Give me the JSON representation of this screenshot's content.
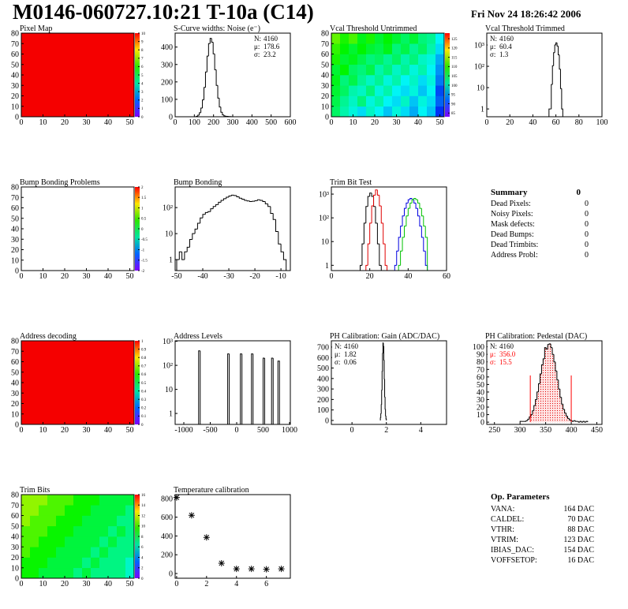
{
  "header": {
    "title": "M0146-060727.10:21 T-10a (C14)",
    "date": "Fri Nov 24 18:26:42 2006"
  },
  "chart_data": [
    {
      "type": "heatmap",
      "title": "Pixel Map",
      "xlim": [
        0,
        52
      ],
      "ylim": [
        0,
        80
      ],
      "xticks": [
        0,
        10,
        20,
        30,
        40,
        50
      ],
      "yticks": [
        0,
        10,
        20,
        30,
        40,
        50,
        60,
        70,
        80
      ],
      "zlim": [
        0,
        10
      ],
      "zticks": [
        0,
        1,
        2,
        3,
        4,
        5,
        6,
        7,
        8,
        9,
        10
      ],
      "values": [
        [
          10
        ]
      ]
    },
    {
      "type": "histogram",
      "title": "S-Curve widths: Noise (e⁻)",
      "xlim": [
        0,
        600
      ],
      "ylim": [
        0,
        480
      ],
      "xticks": [
        0,
        100,
        200,
        300,
        400,
        500,
        600
      ],
      "yticks": [
        0,
        100,
        200,
        300,
        400
      ],
      "color": "#000000",
      "bins": [
        110,
        118,
        126,
        134,
        142,
        150,
        158,
        166,
        174,
        182,
        190,
        198,
        206,
        214,
        222,
        230,
        238,
        246,
        254,
        262,
        270,
        278,
        286,
        294,
        302
      ],
      "values": [
        3,
        9,
        23,
        50,
        97,
        168,
        257,
        348,
        420,
        450,
        428,
        361,
        270,
        180,
        107,
        56,
        26,
        11,
        5,
        3,
        2,
        1,
        1,
        0
      ],
      "stats_corner": "top-right",
      "stats": [
        {
          "label": "N:",
          "value": 4160
        },
        {
          "label": "μ:",
          "value": 178.6
        },
        {
          "label": "σ:",
          "value": 23.2
        }
      ]
    },
    {
      "type": "heatmap",
      "title": "Vcal Threshold Untrimmed",
      "xlim": [
        0,
        52
      ],
      "ylim": [
        0,
        80
      ],
      "xticks": [
        0,
        10,
        20,
        30,
        40,
        50
      ],
      "yticks": [
        0,
        10,
        20,
        30,
        40,
        50,
        60,
        70,
        80
      ],
      "zlim": [
        83,
        128
      ],
      "zticks": [
        85,
        90,
        95,
        100,
        105,
        110,
        115,
        120,
        125
      ],
      "values": [
        [
          104,
          101,
          99,
          97,
          100,
          98,
          96,
          99,
          97,
          95,
          98,
          96,
          90
        ],
        [
          105,
          102,
          100,
          103,
          99,
          101,
          98,
          97,
          100,
          96,
          99,
          97,
          92
        ],
        [
          106,
          104,
          101,
          100,
          103,
          99,
          101,
          98,
          97,
          99,
          96,
          98,
          91
        ],
        [
          107,
          103,
          105,
          102,
          100,
          102,
          99,
          101,
          98,
          100,
          97,
          99,
          93
        ],
        [
          106,
          108,
          104,
          103,
          105,
          101,
          103,
          100,
          102,
          99,
          101,
          98,
          94
        ],
        [
          109,
          106,
          107,
          105,
          103,
          104,
          102,
          104,
          101,
          103,
          100,
          99,
          95
        ],
        [
          110,
          108,
          106,
          108,
          106,
          105,
          107,
          103,
          105,
          102,
          104,
          101,
          97
        ],
        [
          112,
          109,
          111,
          107,
          109,
          106,
          108,
          106,
          104,
          106,
          103,
          102,
          98
        ]
      ]
    },
    {
      "type": "histogram",
      "title": "Vcal Threshold Trimmed",
      "log_y": true,
      "xlim": [
        0,
        100
      ],
      "ylim": [
        0.43,
        3600
      ],
      "xticks": [
        0,
        20,
        40,
        60,
        80,
        100
      ],
      "yticks": [
        1,
        10,
        {
          "value": 100,
          "label": "10²"
        },
        {
          "value": 1000,
          "label": "10³"
        }
      ],
      "color": "#000000",
      "bins": [
        54,
        55,
        56,
        57,
        58,
        59,
        60,
        61,
        62,
        63,
        64,
        65,
        66
      ],
      "values": [
        1,
        1,
        14,
        106,
        439,
        1004,
        1274,
        893,
        347,
        74,
        9,
        1
      ],
      "stats_corner": "top-left",
      "stats": [
        {
          "label": "N:",
          "value": 4160
        },
        {
          "label": "μ:",
          "value": 60.4
        },
        {
          "label": "σ:",
          "value": 1.3
        }
      ]
    },
    {
      "type": "heatmap",
      "title": "Bump Bonding Problems",
      "xlim": [
        0,
        52
      ],
      "ylim": [
        0,
        80
      ],
      "xticks": [
        0,
        10,
        20,
        30,
        40,
        50
      ],
      "yticks": [
        0,
        10,
        20,
        30,
        40,
        50,
        60,
        70,
        80
      ],
      "zlim": [
        -2,
        2
      ],
      "zticks": [
        -2,
        -1.5,
        -1,
        -0.5,
        0,
        0.5,
        1,
        1.5,
        2
      ]
    },
    {
      "type": "histogram",
      "title": "Bump Bonding",
      "log_y": true,
      "xlim": [
        -50.6,
        -6.4
      ],
      "ylim": [
        0.38,
        620
      ],
      "xticks": [
        -50,
        -40,
        -30,
        -20,
        -10
      ],
      "yticks": [
        1,
        10,
        {
          "value": 100,
          "label": "10²"
        }
      ],
      "color": "#000000",
      "bins": [
        -50,
        -49,
        -48,
        -47,
        -46,
        -45,
        -44,
        -43,
        -42,
        -41,
        -40,
        -39,
        -38,
        -37,
        -36,
        -35,
        -34,
        -33,
        -32,
        -31,
        -30,
        -29,
        -28,
        -27,
        -26,
        -25,
        -24,
        -23,
        -22,
        -21,
        -20,
        -19,
        -18,
        -17,
        -16,
        -15,
        -14,
        -13,
        -12,
        -11,
        -10,
        -9,
        -8
      ],
      "values": [
        1,
        2,
        1,
        2,
        3,
        6,
        10,
        15,
        25,
        40,
        55,
        65,
        70,
        90,
        110,
        130,
        160,
        190,
        220,
        250,
        280,
        300,
        290,
        260,
        230,
        210,
        190,
        180,
        170,
        175,
        185,
        200,
        190,
        170,
        140,
        110,
        60,
        35,
        12,
        4,
        2,
        1
      ]
    },
    {
      "type": "histogram",
      "title": "Trim Bit Test",
      "log_y": true,
      "xlim": [
        0,
        60
      ],
      "ylim": [
        0.6,
        2000
      ],
      "xticks": [
        0,
        20,
        40,
        60
      ],
      "yticks": [
        1,
        10,
        {
          "value": 100,
          "label": "10²"
        },
        {
          "value": 1000,
          "label": "10³"
        }
      ],
      "bins": [
        14,
        15,
        16,
        17,
        18,
        19,
        20,
        21,
        22,
        23,
        24,
        25,
        26,
        27,
        28,
        29,
        30,
        31,
        32,
        33,
        34,
        35,
        36,
        37,
        38,
        39,
        40,
        41,
        42,
        43,
        44,
        45,
        46,
        47,
        48,
        49,
        50
      ],
      "series": [
        {
          "color": "#000000",
          "values": [
            0,
            1,
            8,
            60,
            300,
            800,
            1100,
            800,
            300,
            60,
            8,
            1,
            0,
            0,
            0,
            0,
            0,
            0,
            0,
            0,
            0,
            0,
            0,
            0,
            0,
            0,
            0,
            0,
            0,
            0,
            0,
            0,
            0,
            0,
            0,
            0
          ]
        },
        {
          "color": "#e00000",
          "values": [
            0,
            0,
            0,
            0,
            1,
            8,
            60,
            320,
            900,
            1500,
            900,
            320,
            60,
            8,
            1,
            0,
            0,
            0,
            0,
            0,
            0,
            0,
            0,
            0,
            0,
            0,
            0,
            0,
            0,
            0,
            0,
            0,
            0,
            0,
            0,
            0
          ]
        },
        {
          "color": "#0000e0",
          "values": [
            0,
            0,
            0,
            0,
            0,
            0,
            0,
            0,
            0,
            0,
            0,
            0,
            0,
            0,
            0,
            0,
            0,
            0,
            0,
            1,
            4,
            15,
            45,
            120,
            250,
            420,
            580,
            660,
            580,
            420,
            250,
            120,
            45,
            15,
            4,
            1
          ]
        },
        {
          "color": "#00c000",
          "values": [
            0,
            0,
            0,
            0,
            0,
            0,
            0,
            0,
            0,
            0,
            0,
            0,
            0,
            0,
            0,
            0,
            0,
            0,
            0,
            0,
            0,
            1,
            4,
            15,
            45,
            120,
            250,
            420,
            580,
            660,
            580,
            420,
            250,
            120,
            45,
            15
          ]
        }
      ]
    },
    {
      "type": "heatmap",
      "title": "Address decoding",
      "xlim": [
        0,
        52
      ],
      "ylim": [
        0,
        80
      ],
      "xticks": [
        0,
        10,
        20,
        30,
        40,
        50
      ],
      "yticks": [
        0,
        10,
        20,
        30,
        40,
        50,
        60,
        70,
        80
      ],
      "zlim": [
        0,
        1
      ],
      "zticks": [
        0,
        0.1,
        0.2,
        0.3,
        0.4,
        0.5,
        0.6,
        0.7,
        0.8,
        0.9,
        1
      ],
      "values": [
        [
          1
        ]
      ]
    },
    {
      "type": "histogram",
      "title": "Address Levels",
      "log_y": true,
      "xlim": [
        -1164,
        1015
      ],
      "ylim": [
        0.35,
        1050
      ],
      "xticks": [
        -1000,
        -500,
        0,
        500,
        1000
      ],
      "yticks": [
        1,
        10,
        {
          "value": 100,
          "label": "10²"
        },
        {
          "value": 1000,
          "label": "10³"
        }
      ],
      "color": "#000000",
      "bins": [
        -720,
        -690,
        -170,
        -140,
        70,
        100,
        280,
        310,
        500,
        530,
        660,
        690,
        780,
        810
      ],
      "values": [
        400,
        0,
        300,
        0,
        300,
        0,
        300,
        0,
        200,
        0,
        200,
        0,
        150
      ]
    },
    {
      "type": "histogram",
      "title": "PH Calibration: Gain (ADC/DAC)",
      "xlim": [
        -1.2,
        5.5
      ],
      "ylim": [
        -38,
        760
      ],
      "xticks": [
        0,
        2,
        4
      ],
      "yticks": [
        0,
        100,
        200,
        300,
        400,
        500,
        600,
        700
      ],
      "color": "#000000",
      "bins": [
        1.65,
        1.675,
        1.7,
        1.725,
        1.75,
        1.775,
        1.8,
        1.825,
        1.85,
        1.875,
        1.9,
        1.925,
        1.95,
        1.975,
        2.0
      ],
      "values": [
        24,
        64,
        150,
        288,
        468,
        640,
        740,
        709,
        576,
        394,
        225,
        108,
        44,
        15
      ],
      "stats_corner": "top-left",
      "stats": [
        {
          "label": "N:",
          "value": 4160
        },
        {
          "label": "μ:",
          "value": 1.82
        },
        {
          "label": "σ:",
          "value": 0.06
        }
      ]
    },
    {
      "type": "histogram",
      "title": "PH Calibration: Pedestal (DAC)",
      "xlim": [
        235,
        460
      ],
      "ylim": [
        -3,
        108
      ],
      "xticks": [
        250,
        300,
        350,
        400,
        450
      ],
      "yticks": [
        0,
        10,
        20,
        30,
        40,
        50,
        60,
        70,
        80,
        90,
        100
      ],
      "color": "#000000",
      "bins": [
        300,
        303,
        306,
        309,
        312,
        315,
        318,
        321,
        324,
        327,
        330,
        333,
        336,
        339,
        342,
        345,
        348,
        351,
        354,
        357,
        360,
        363,
        366,
        369,
        372,
        375,
        378,
        381,
        384,
        387,
        390,
        393,
        396,
        399,
        402,
        405,
        408,
        411,
        414,
        417,
        420,
        423,
        426,
        429,
        432
      ],
      "values": [
        1,
        1,
        1,
        1,
        2,
        4,
        7,
        10,
        15,
        22,
        30,
        40,
        51,
        64,
        76,
        84,
        99,
        97,
        103,
        104,
        99,
        90,
        80,
        68,
        56,
        44,
        33,
        24,
        17,
        12,
        8,
        5,
        3,
        2,
        1,
        2,
        1,
        1,
        0,
        1,
        0,
        1,
        0,
        1
      ],
      "fit_color": "#ff0000",
      "fit_range": [
        320,
        400
      ],
      "fit_line_height": 62,
      "stats_corner": "top-left",
      "stats": [
        {
          "label": "N:",
          "value": 4160
        },
        {
          "label": "μ:",
          "value": {
            "value": 356.0,
            "label": "356.0"
          },
          "color": "#ff0000"
        },
        {
          "label": "σ:",
          "value": 15.5,
          "color": "#ff0000"
        }
      ]
    },
    {
      "type": "heatmap",
      "title": "Trim Bits",
      "xlim": [
        0,
        52
      ],
      "ylim": [
        0,
        80
      ],
      "xticks": [
        0,
        10,
        20,
        30,
        40,
        50
      ],
      "yticks": [
        0,
        10,
        20,
        30,
        40,
        50,
        60,
        70,
        80
      ],
      "zlim": [
        0,
        16
      ],
      "zticks": [
        0,
        2,
        4,
        6,
        8,
        10,
        12,
        14,
        16
      ],
      "values": [
        [
          9,
          9,
          8,
          8,
          8,
          8,
          7,
          8,
          7,
          7,
          7,
          7,
          6
        ],
        [
          9,
          9,
          9,
          8,
          8,
          8,
          8,
          7,
          8,
          7,
          7,
          7,
          6
        ],
        [
          10,
          9,
          9,
          9,
          8,
          8,
          8,
          8,
          7,
          8,
          7,
          7,
          7
        ],
        [
          10,
          10,
          9,
          9,
          9,
          8,
          8,
          8,
          8,
          7,
          8,
          7,
          7
        ],
        [
          10,
          10,
          10,
          9,
          9,
          9,
          8,
          8,
          8,
          8,
          7,
          8,
          7
        ],
        [
          11,
          10,
          10,
          10,
          9,
          9,
          9,
          8,
          8,
          8,
          8,
          7,
          7
        ],
        [
          11,
          11,
          10,
          10,
          10,
          9,
          9,
          9,
          8,
          8,
          8,
          8,
          7
        ],
        [
          11,
          11,
          11,
          10,
          10,
          10,
          9,
          9,
          9,
          8,
          8,
          8,
          8
        ]
      ]
    },
    {
      "type": "scatter",
      "title": "Temperature calibration",
      "xlim": [
        -0.1,
        7.6
      ],
      "ylim": [
        -50,
        840
      ],
      "xticks": [
        0,
        2,
        4,
        6
      ],
      "yticks": [
        0,
        200,
        400,
        600,
        800
      ],
      "color": "#000000",
      "x": [
        0,
        1,
        2,
        3,
        4,
        5,
        6,
        7
      ],
      "values": [
        810,
        620,
        385,
        110,
        50,
        50,
        45,
        50
      ]
    }
  ],
  "summary": {
    "title": "Summary",
    "value": 0,
    "rows": [
      {
        "label": "Dead Pixels:",
        "value": 0
      },
      {
        "label": "Noisy Pixels:",
        "value": 0
      },
      {
        "label": "Mask defects:",
        "value": 0
      },
      {
        "label": "Dead Bumps:",
        "value": 0
      },
      {
        "label": "Dead Trimbits:",
        "value": 0
      },
      {
        "label": "Address Probl:",
        "value": 0
      }
    ]
  },
  "parameters": {
    "title": "Op. Parameters",
    "rows": [
      {
        "label": "VANA:",
        "value": "164 DAC"
      },
      {
        "label": "CALDEL:",
        "value": "70 DAC"
      },
      {
        "label": "VTHR:",
        "value": "88 DAC"
      },
      {
        "label": "VTRIM:",
        "value": "123 DAC"
      },
      {
        "label": "IBIAS_DAC:",
        "value": "154 DAC"
      },
      {
        "label": "VOFFSETOP:",
        "value": "16 DAC"
      }
    ]
  }
}
